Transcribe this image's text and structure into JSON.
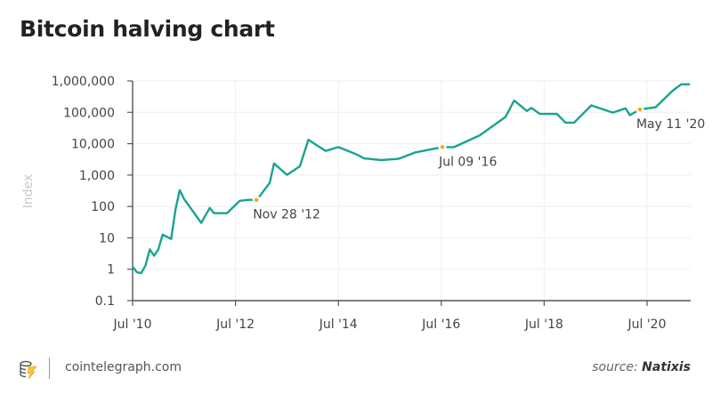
{
  "chart_data": {
    "type": "line",
    "title": "Bitcoin halving chart",
    "ylabel": "Index",
    "xlabel": "",
    "yscale": "log",
    "ylim": [
      0.1,
      1000000
    ],
    "xlim": [
      "2010-07",
      "2021-05"
    ],
    "grid": true,
    "y_ticks": [
      "0.1",
      "1",
      "10",
      "100",
      "1,000",
      "10,000",
      "100,000",
      "1,000,000"
    ],
    "y_tick_values": [
      0.1,
      1,
      10,
      100,
      1000,
      10000,
      100000,
      1000000
    ],
    "x_ticks": [
      {
        "date": "2010-07",
        "label": "Jul '10"
      },
      {
        "date": "2012-07",
        "label": "Jul '12"
      },
      {
        "date": "2014-07",
        "label": "Jul '14"
      },
      {
        "date": "2016-07",
        "label": "Jul '16"
      },
      {
        "date": "2018-07",
        "label": "Jul '18"
      },
      {
        "date": "2020-07",
        "label": "Jul '20"
      }
    ],
    "line_color": "#1aa391",
    "halving_color": "#f5a623",
    "series": [
      {
        "points": [
          [
            "2010-07",
            1.2
          ],
          [
            "2010-08",
            0.8
          ],
          [
            "2010-09",
            0.75
          ],
          [
            "2010-10",
            1.3
          ],
          [
            "2010-11",
            4.3
          ],
          [
            "2010-12",
            2.7
          ],
          [
            "2011-01",
            4.3
          ],
          [
            "2011-02",
            12.7
          ],
          [
            "2011-04",
            9.2
          ],
          [
            "2011-05",
            81
          ],
          [
            "2011-06",
            330
          ],
          [
            "2011-07",
            173
          ],
          [
            "2011-11",
            30
          ],
          [
            "2011-12",
            52
          ],
          [
            "2012-01",
            90
          ],
          [
            "2012-02",
            61
          ],
          [
            "2012-05",
            61
          ],
          [
            "2012-08",
            151
          ],
          [
            "2012-10",
            162
          ],
          [
            "2012-11-28",
            162
          ],
          [
            "2012-12",
            162
          ],
          [
            "2013-03",
            570
          ],
          [
            "2013-04",
            2340
          ],
          [
            "2013-07",
            1020
          ],
          [
            "2013-10",
            1900
          ],
          [
            "2013-12",
            13400
          ],
          [
            "2014-04",
            5900
          ],
          [
            "2014-07",
            7800
          ],
          [
            "2014-11",
            4700
          ],
          [
            "2015-01",
            3400
          ],
          [
            "2015-05",
            3000
          ],
          [
            "2015-09",
            3300
          ],
          [
            "2016-01",
            5300
          ],
          [
            "2016-07-09",
            7800
          ],
          [
            "2016-10",
            7800
          ],
          [
            "2017-04",
            18600
          ],
          [
            "2017-10",
            71000
          ],
          [
            "2017-12",
            236000
          ],
          [
            "2018-03",
            110000
          ],
          [
            "2018-04",
            138000
          ],
          [
            "2018-06",
            89000
          ],
          [
            "2018-10",
            89000
          ],
          [
            "2018-12",
            47000
          ],
          [
            "2019-02",
            47000
          ],
          [
            "2019-06",
            166000
          ],
          [
            "2019-11",
            98000
          ],
          [
            "2020-02",
            134000
          ],
          [
            "2020-03",
            81000
          ],
          [
            "2020-05-11",
            123000
          ],
          [
            "2020-09",
            145000
          ],
          [
            "2021-01",
            490000
          ],
          [
            "2021-03",
            780000
          ],
          [
            "2021-05",
            780000
          ]
        ]
      }
    ],
    "annotations": [
      {
        "date": "2012-11-28",
        "value": 162,
        "label": "Nov 28 '12"
      },
      {
        "date": "2016-07-09",
        "value": 7800,
        "label": "Jul 09 '16"
      },
      {
        "date": "2020-05-11",
        "value": 123000,
        "label": "May 11 '20"
      }
    ]
  },
  "footer": {
    "site": "cointelegraph.com",
    "source_prefix": "source:",
    "source_name": "Natixis",
    "logo_icon": "cointelegraph-logo-icon"
  }
}
